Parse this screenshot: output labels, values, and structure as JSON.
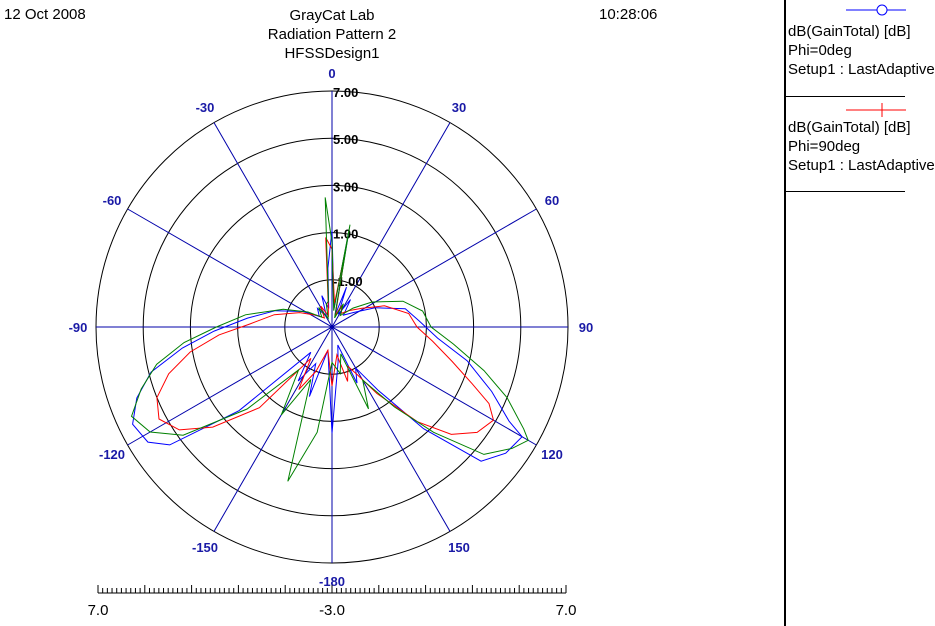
{
  "header": {
    "date": "12 Oct 2008",
    "time": "10:28:06",
    "lab": "GrayCat Lab",
    "title": "Radiation Pattern 2",
    "design": "HFSSDesign1"
  },
  "legend": [
    {
      "line1": "dB(GainTotal) [dB]",
      "line2": "Phi=0deg",
      "line3": "Setup1 : LastAdaptive",
      "color": "#0000ff",
      "marker": "circle"
    },
    {
      "line1": "dB(GainTotal) [dB]",
      "line2": "Phi=90deg",
      "line3": "Setup1 : LastAdaptive",
      "color": "#ff0000",
      "marker": "cross"
    }
  ],
  "chart_data": {
    "type": "polar",
    "radial_axis": {
      "min": -3.0,
      "max": 7.0,
      "tick_labels": [
        "-1.00",
        "1.00",
        "3.00",
        "5.00",
        "7.00"
      ],
      "tick_values": [
        -1,
        1,
        3,
        5,
        7
      ],
      "ring_values": [
        -1,
        1,
        3,
        5,
        7
      ]
    },
    "angle_labels": [
      "0",
      "30",
      "60",
      "90",
      "120",
      "150",
      "-180",
      "-150",
      "-120",
      "-90",
      "-60",
      "-30"
    ],
    "angle_values": [
      0,
      30,
      60,
      90,
      120,
      150,
      180,
      -150,
      -120,
      -90,
      -60,
      -30
    ],
    "bottom_scale": {
      "left": "7.0",
      "center": "-3.0",
      "right": "7.0"
    },
    "grid": true,
    "colors": {
      "grid": "#0000a0",
      "ring": "#000000",
      "angle_label": "#1a1aa6"
    },
    "series": [
      {
        "name": "Phi=0deg",
        "color": "#0000ff",
        "points": [
          [
            0,
            1.1
          ],
          [
            6,
            -2.2
          ],
          [
            10,
            1.0
          ],
          [
            14,
            -2.5
          ],
          [
            20,
            -1.2
          ],
          [
            26,
            -2.4
          ],
          [
            34,
            -1.6
          ],
          [
            44,
            -2.3
          ],
          [
            56,
            -1.9
          ],
          [
            66,
            -1.0
          ],
          [
            76,
            0.2
          ],
          [
            86,
            0.7
          ],
          [
            96,
            1.5
          ],
          [
            104,
            2.9
          ],
          [
            112,
            4.3
          ],
          [
            118,
            5.5
          ],
          [
            120,
            6.3
          ],
          [
            126,
            6.1
          ],
          [
            132,
            5.5
          ],
          [
            138,
            2.8
          ],
          [
            144,
            0.3
          ],
          [
            150,
            -1.0
          ],
          [
            156,
            -0.4
          ],
          [
            162,
            -2.2
          ],
          [
            170,
            -1.5
          ],
          [
            180,
            1.5
          ],
          [
            -170,
            -2.0
          ],
          [
            -162,
            0.1
          ],
          [
            -156,
            -1.3
          ],
          [
            -148,
            -0.3
          ],
          [
            -140,
            -1.6
          ],
          [
            -132,
            2.3
          ],
          [
            -126,
            5.5
          ],
          [
            -122,
            6.2
          ],
          [
            -116,
            6.4
          ],
          [
            -110,
            5.8
          ],
          [
            -104,
            4.9
          ],
          [
            -98,
            3.4
          ],
          [
            -92,
            2.0
          ],
          [
            -84,
            0.6
          ],
          [
            -74,
            -0.5
          ],
          [
            -62,
            -1.6
          ],
          [
            -50,
            -2.3
          ],
          [
            -38,
            -2.0
          ],
          [
            -28,
            -2.5
          ],
          [
            -18,
            -1.6
          ],
          [
            -10,
            -2.2
          ],
          [
            -4,
            -0.5
          ],
          [
            0,
            1.1
          ]
        ]
      },
      {
        "name": "Phi=90deg",
        "color": "#ff0000",
        "points": [
          [
            0,
            0.3
          ],
          [
            6,
            -2.0
          ],
          [
            10,
            0.4
          ],
          [
            16,
            -2.5
          ],
          [
            24,
            -2.0
          ],
          [
            34,
            -2.3
          ],
          [
            46,
            -2.0
          ],
          [
            58,
            -1.5
          ],
          [
            68,
            -0.6
          ],
          [
            80,
            0.3
          ],
          [
            90,
            0.6
          ],
          [
            98,
            1.3
          ],
          [
            106,
            2.3
          ],
          [
            112,
            3.4
          ],
          [
            116,
            4.4
          ],
          [
            120,
            4.9
          ],
          [
            126,
            4.6
          ],
          [
            132,
            3.8
          ],
          [
            138,
            2.4
          ],
          [
            146,
            0.4
          ],
          [
            152,
            -0.7
          ],
          [
            158,
            -1.2
          ],
          [
            164,
            -0.6
          ],
          [
            170,
            -1.8
          ],
          [
            180,
            -0.5
          ],
          [
            -170,
            -2.0
          ],
          [
            -160,
            -1.0
          ],
          [
            -152,
            0.0
          ],
          [
            -146,
            -1.4
          ],
          [
            -138,
            1.6
          ],
          [
            -130,
            3.6
          ],
          [
            -124,
            4.8
          ],
          [
            -118,
            5.3
          ],
          [
            -112,
            5.0
          ],
          [
            -106,
            4.2
          ],
          [
            -100,
            3.1
          ],
          [
            -94,
            1.8
          ],
          [
            -88,
            0.5
          ],
          [
            -78,
            -0.5
          ],
          [
            -66,
            -1.5
          ],
          [
            -52,
            -2.2
          ],
          [
            -40,
            -2.5
          ],
          [
            -28,
            -2.0
          ],
          [
            -18,
            -2.5
          ],
          [
            -10,
            -2.1
          ],
          [
            -4,
            0.8
          ],
          [
            0,
            0.3
          ]
        ]
      },
      {
        "name": "",
        "color": "#008000",
        "points": [
          [
            0,
            0.6
          ],
          [
            6,
            -2.3
          ],
          [
            10,
            1.4
          ],
          [
            16,
            -2.6
          ],
          [
            26,
            -1.9
          ],
          [
            36,
            -2.4
          ],
          [
            48,
            -1.8
          ],
          [
            58,
            -1.0
          ],
          [
            70,
            0.2
          ],
          [
            80,
            0.9
          ],
          [
            90,
            1.2
          ],
          [
            98,
            2.2
          ],
          [
            106,
            3.7
          ],
          [
            112,
            5.0
          ],
          [
            118,
            6.2
          ],
          [
            120,
            6.6
          ],
          [
            124,
            6.2
          ],
          [
            130,
            5.4
          ],
          [
            136,
            3.2
          ],
          [
            142,
            1.3
          ],
          [
            150,
            -0.4
          ],
          [
            156,
            0.8
          ],
          [
            162,
            -1.8
          ],
          [
            170,
            -1.0
          ],
          [
            180,
            -1.5
          ],
          [
            -172,
            1.5
          ],
          [
            -164,
            3.8
          ],
          [
            -158,
            -0.6
          ],
          [
            -150,
            1.3
          ],
          [
            -142,
            -0.7
          ],
          [
            -134,
            2.0
          ],
          [
            -126,
            4.8
          ],
          [
            -120,
            5.9
          ],
          [
            -114,
            6.3
          ],
          [
            -108,
            5.5
          ],
          [
            -102,
            4.6
          ],
          [
            -96,
            3.3
          ],
          [
            -90,
            1.9
          ],
          [
            -82,
            0.7
          ],
          [
            -70,
            -0.8
          ],
          [
            -58,
            -1.8
          ],
          [
            -46,
            -2.4
          ],
          [
            -34,
            -2.0
          ],
          [
            -24,
            -2.6
          ],
          [
            -14,
            -2.0
          ],
          [
            -8,
            -1.9
          ],
          [
            -3,
            2.5
          ],
          [
            0,
            0.6
          ]
        ]
      }
    ]
  }
}
